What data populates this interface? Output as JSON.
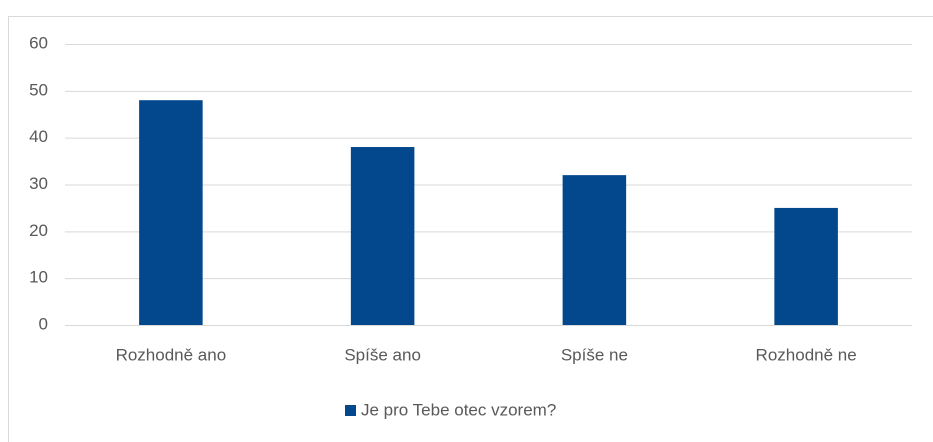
{
  "chart_data": {
    "type": "bar",
    "categories": [
      "Rozhodně ano",
      "Spíše ano",
      "Spíše ne",
      "Rozhodně ne"
    ],
    "series": [
      {
        "name": "Je pro Tebe otec vzorem?",
        "color": "#03478c",
        "values": [
          48,
          38,
          32,
          25
        ]
      }
    ],
    "ylim": [
      0,
      60
    ],
    "yticks": [
      0,
      10,
      20,
      30,
      40,
      50,
      60
    ],
    "grid": true,
    "legend": "bottom"
  }
}
